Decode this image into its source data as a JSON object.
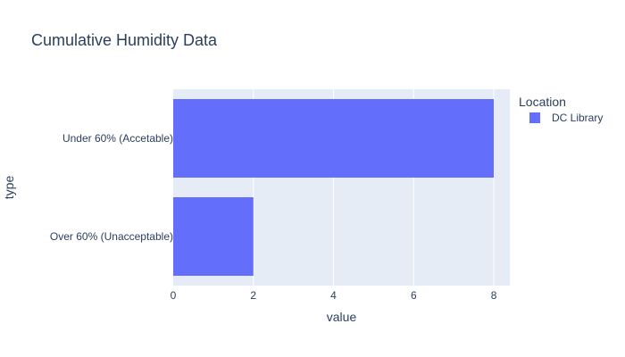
{
  "chart_data": {
    "type": "bar",
    "orientation": "horizontal",
    "title": "Cumulative Humidity Data",
    "xlabel": "value",
    "ylabel": "type",
    "categories": [
      "Under 60% (Accetable)",
      "Over 60% (Unacceptable)"
    ],
    "series": [
      {
        "name": "DC Library",
        "values": [
          8,
          2
        ],
        "color": "#636efa"
      }
    ],
    "xlim": [
      0,
      8.4
    ],
    "xticks": [
      0,
      2,
      4,
      6,
      8
    ],
    "grid": true,
    "legend": {
      "title": "Location",
      "placement": "top-right"
    },
    "plot_background": "#e5ecf6"
  }
}
